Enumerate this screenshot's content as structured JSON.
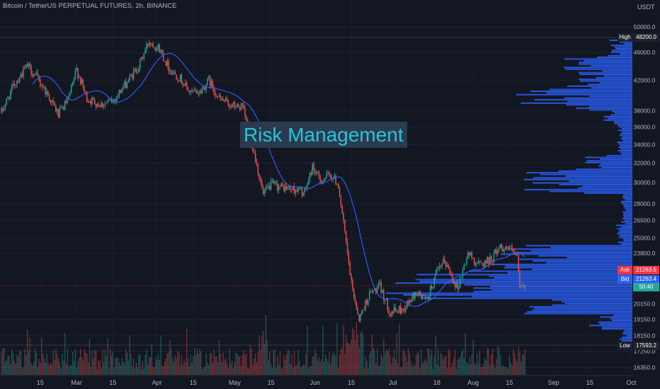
{
  "header": {
    "title": "Bitcoin / TetherUS PERPETUAL FUTURES, 2h, BINANCE",
    "currency": "USDT"
  },
  "overlay": {
    "text": "Risk Management"
  },
  "price_tags": {
    "high": {
      "label": "High",
      "value": "48200.0"
    },
    "low": {
      "label": "Low",
      "value": "17593.2"
    },
    "ask": {
      "label": "Ask",
      "value": "21263.5"
    },
    "bid": {
      "label": "Bid",
      "value": "21263.4"
    },
    "timer": {
      "value": "50:40"
    }
  },
  "colors": {
    "background": "#131722",
    "up": "#26a69a",
    "down": "#ef5350",
    "ma_line": "#2962ff",
    "volume_profile": "#2962ff",
    "overlay_text": "#28c4d6",
    "overlay_bg": "#2a3a4f",
    "axis_text": "#b2b5be",
    "high_low_tag": "#1e222d",
    "ask_tag": "#f23645",
    "bid_tag": "#2962ff",
    "timer_tag": "#26a69a"
  },
  "chart_data": {
    "type": "candlestick",
    "scale": "log",
    "y_ticks": [
      "50000.0",
      "46000.0",
      "42000.0",
      "38000.0",
      "36000.0",
      "34000.0",
      "32000.0",
      "30000.0",
      "28000.0",
      "26500.0",
      "25000.0",
      "23800.0",
      "20150.0",
      "19150.0",
      "18150.0",
      "17250.0",
      "16350.0"
    ],
    "x_ticks": [
      "15",
      "Mar",
      "15",
      "Apr",
      "15",
      "May",
      "15",
      "Jun",
      "15",
      "Jul",
      "18",
      "Aug",
      "15",
      "Sep",
      "15",
      "Oct"
    ],
    "price_path": [
      {
        "date": "2022-02-01",
        "price": 38500
      },
      {
        "date": "2022-02-05",
        "price": 41500
      },
      {
        "date": "2022-02-10",
        "price": 44000
      },
      {
        "date": "2022-02-14",
        "price": 42200
      },
      {
        "date": "2022-02-18",
        "price": 40000
      },
      {
        "date": "2022-02-22",
        "price": 37500
      },
      {
        "date": "2022-02-26",
        "price": 39500
      },
      {
        "date": "2022-03-01",
        "price": 43500
      },
      {
        "date": "2022-03-05",
        "price": 39500
      },
      {
        "date": "2022-03-10",
        "price": 38800
      },
      {
        "date": "2022-03-15",
        "price": 39200
      },
      {
        "date": "2022-03-20",
        "price": 41500
      },
      {
        "date": "2022-03-25",
        "price": 44000
      },
      {
        "date": "2022-03-29",
        "price": 47800
      },
      {
        "date": "2022-04-02",
        "price": 46500
      },
      {
        "date": "2022-04-06",
        "price": 43500
      },
      {
        "date": "2022-04-10",
        "price": 42200
      },
      {
        "date": "2022-04-14",
        "price": 40200
      },
      {
        "date": "2022-04-18",
        "price": 40500
      },
      {
        "date": "2022-04-21",
        "price": 42000
      },
      {
        "date": "2022-04-25",
        "price": 39500
      },
      {
        "date": "2022-04-30",
        "price": 38600
      },
      {
        "date": "2022-05-04",
        "price": 38400
      },
      {
        "date": "2022-05-06",
        "price": 36000
      },
      {
        "date": "2022-05-09",
        "price": 32500
      },
      {
        "date": "2022-05-12",
        "price": 28800
      },
      {
        "date": "2022-05-15",
        "price": 29800
      },
      {
        "date": "2022-05-20",
        "price": 29500
      },
      {
        "date": "2022-05-25",
        "price": 29300
      },
      {
        "date": "2022-05-28",
        "price": 29000
      },
      {
        "date": "2022-05-31",
        "price": 31600
      },
      {
        "date": "2022-06-03",
        "price": 30200
      },
      {
        "date": "2022-06-07",
        "price": 30800
      },
      {
        "date": "2022-06-10",
        "price": 29800
      },
      {
        "date": "2022-06-13",
        "price": 24500
      },
      {
        "date": "2022-06-15",
        "price": 21500
      },
      {
        "date": "2022-06-18",
        "price": 19200
      },
      {
        "date": "2022-06-22",
        "price": 20800
      },
      {
        "date": "2022-06-26",
        "price": 21300
      },
      {
        "date": "2022-06-30",
        "price": 19600
      },
      {
        "date": "2022-07-05",
        "price": 19800
      },
      {
        "date": "2022-07-10",
        "price": 20900
      },
      {
        "date": "2022-07-14",
        "price": 20400
      },
      {
        "date": "2022-07-18",
        "price": 22300
      },
      {
        "date": "2022-07-21",
        "price": 23200
      },
      {
        "date": "2022-07-26",
        "price": 21200
      },
      {
        "date": "2022-07-30",
        "price": 23800
      },
      {
        "date": "2022-08-03",
        "price": 22900
      },
      {
        "date": "2022-08-08",
        "price": 23300
      },
      {
        "date": "2022-08-11",
        "price": 24300
      },
      {
        "date": "2022-08-15",
        "price": 24200
      },
      {
        "date": "2022-08-18",
        "price": 23400
      },
      {
        "date": "2022-08-19",
        "price": 21300
      },
      {
        "date": "2022-08-21",
        "price": 21263
      }
    ]
  }
}
